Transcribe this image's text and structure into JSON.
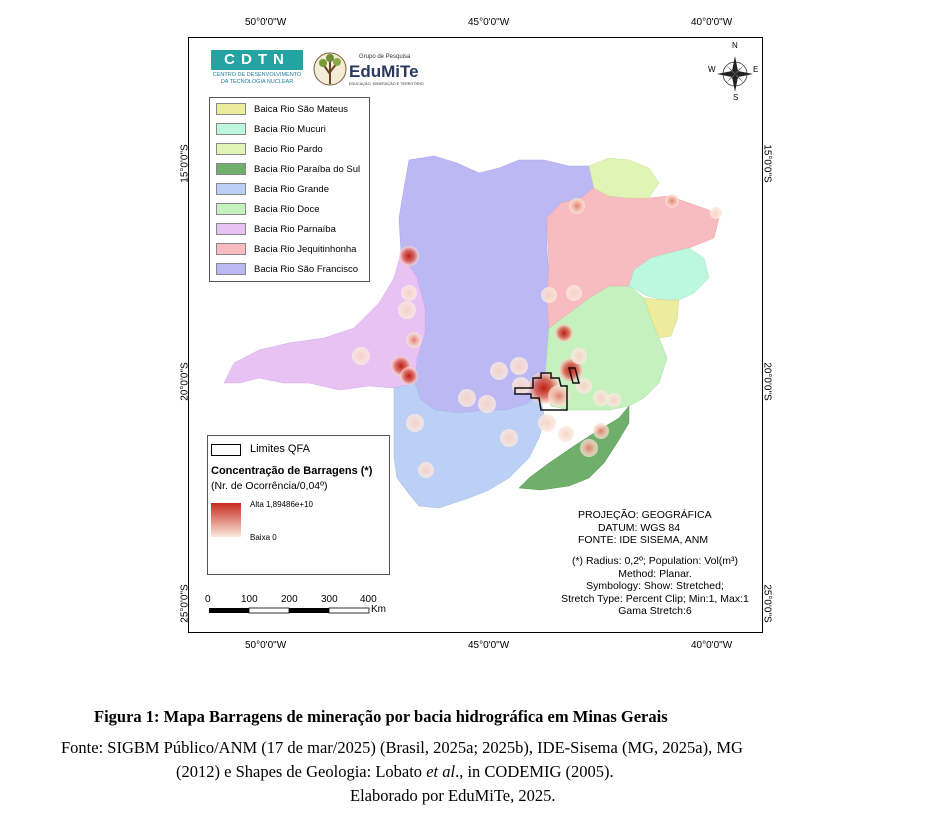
{
  "axes": {
    "top_lon": [
      "50°0'0\"W",
      "45°0'0\"W",
      "40°0'0\"W"
    ],
    "bottom_lon": [
      "50°0'0\"W",
      "45°0'0\"W",
      "40°0'0\"W"
    ],
    "left_lat": [
      "15°0'0\"S",
      "20°0'0\"S",
      "25°0'0\"S"
    ],
    "right_lat": [
      "15°0'0\"S",
      "20°0'0\"S",
      "25°0'0\"S"
    ]
  },
  "logos": {
    "cdtn_text": "CDTN",
    "cdtn_sub": [
      "CENTRO DE DESENVOLVIMENTO",
      "DA TECNOLOGIA NUCLEAR"
    ],
    "edumite_small": "Grupo de Pesquisa",
    "edumite_name": "EduMiTe",
    "edumite_sub": "EDUCAÇÃO, MINERAÇÃO E TERRITÓRIO"
  },
  "north_arrow": {
    "n": "N",
    "s": "S",
    "e": "E",
    "w": "W"
  },
  "basin_legend": [
    {
      "label": "Baica Rio São Mateus",
      "color": "#ecec9f"
    },
    {
      "label": "Bacia Rio Mucuri",
      "color": "#bdf7df"
    },
    {
      "label": "Bacio Rio Pardo",
      "color": "#e0f5b5"
    },
    {
      "label": "Bacia Rio Paraíba do Sul",
      "color": "#6fae6b"
    },
    {
      "label": "Bacia Rio Grande",
      "color": "#bccff5"
    },
    {
      "label": "Bacia Rio Doce",
      "color": "#c4f1bd"
    },
    {
      "label": "Bacia Rio Parnaíba",
      "color": "#e9c2f4"
    },
    {
      "label": "Bacia Rio Jequitinhonha",
      "color": "#f8bcc0"
    },
    {
      "label": "Bacia Rio São Francisco",
      "color": "#bcb8f4"
    }
  ],
  "density_legend": {
    "limits_label": "Limites QFA",
    "title": "Concentração de Barragens (*)",
    "subtitle": "(Nr. de Ocorrência/0,04º)",
    "high": "Alta 1,89486e+10",
    "low": "Baixa 0",
    "high_color": "#c62b1f",
    "low_color": "#fbe9dc"
  },
  "scale_bar": {
    "ticks": [
      "0",
      "100",
      "200",
      "300",
      "400"
    ],
    "unit": "Km"
  },
  "projection": [
    "PROJEÇÃO: GEOGRÁFICA",
    "DATUM: WGS 84",
    "FONTE: IDE SISEMA, ANM"
  ],
  "method": [
    "(*) Radius: 0,2º; Population: Vol(m³)",
    "Method: Planar.",
    "Symbology: Show: Stretched;",
    "Stretch Type: Percent Clip; Min:1, Max:1",
    "Gama Stretch:6"
  ],
  "caption": {
    "figure_title": "Figura 1: Mapa Barragens de mineração por bacia hidrográfica em Minas Gerais",
    "source_line1": "Fonte: SIGBM Público/ANM (17 de mar/2025) (Brasil, 2025a; 2025b), IDE-Sisema (MG, 2025a), MG",
    "source_line2_a": "(2012) e Shapes de Geologia: Lobato ",
    "source_line2_em": "et al",
    "source_line2_b": "., in CODEMIG (2005).",
    "source_line3": "Elaborado por EduMiTe, 2025."
  }
}
